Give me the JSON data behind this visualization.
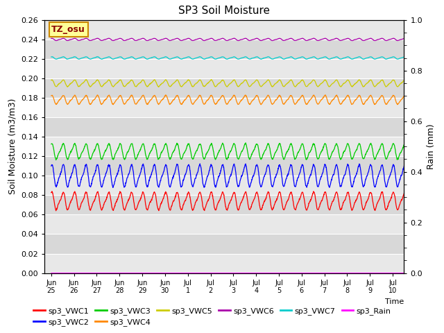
{
  "title": "SP3 Soil Moisture",
  "ylabel_left": "Soil Moisture (m3/m3)",
  "ylabel_right": "Rain (mm)",
  "xlabel": "Time",
  "background_color": "#e0e0e0",
  "ylim_left": [
    0.0,
    0.26
  ],
  "ylim_right": [
    0.0,
    1.0
  ],
  "yticks_left": [
    0.0,
    0.02,
    0.04,
    0.06,
    0.08,
    0.1,
    0.12,
    0.14,
    0.16,
    0.18,
    0.2,
    0.22,
    0.24,
    0.26
  ],
  "yticks_right": [
    0.0,
    0.2,
    0.4,
    0.6,
    0.8,
    1.0
  ],
  "tz_label": "TZ_osu",
  "series": [
    {
      "name": "sp3_VWC1",
      "color": "#ff0000",
      "base": 0.074,
      "amplitude": 0.008,
      "period": 0.5,
      "phase": 0.5
    },
    {
      "name": "sp3_VWC2",
      "color": "#0000ff",
      "base": 0.1,
      "amplitude": 0.01,
      "period": 0.5,
      "phase": 0.5
    },
    {
      "name": "sp3_VWC3",
      "color": "#00cc00",
      "base": 0.125,
      "amplitude": 0.007,
      "period": 0.5,
      "phase": 0.5
    },
    {
      "name": "sp3_VWC4",
      "color": "#ff8800",
      "base": 0.178,
      "amplitude": 0.004,
      "period": 0.5,
      "phase": 0.5
    },
    {
      "name": "sp3_VWC5",
      "color": "#cccc00",
      "base": 0.195,
      "amplitude": 0.003,
      "period": 0.5,
      "phase": 0.5
    },
    {
      "name": "sp3_VWC6",
      "color": "#aa00aa",
      "base": 0.24,
      "amplitude": 0.001,
      "period": 0.5,
      "phase": 0.5
    },
    {
      "name": "sp3_VWC7",
      "color": "#00cccc",
      "base": 0.221,
      "amplitude": 0.001,
      "period": 0.5,
      "phase": 0.5
    },
    {
      "name": "sp3_Rain",
      "color": "#ff00ff",
      "base": 0.0,
      "amplitude": 0.0,
      "period": 1.0,
      "phase": 0.0
    }
  ],
  "tick_positions": [
    0,
    1,
    2,
    3,
    4,
    5,
    6,
    7,
    8,
    9,
    10,
    11,
    12,
    13,
    14,
    15
  ],
  "tick_labels": [
    "Jun 25",
    "Jun 26",
    "Jun 27",
    "Jun 28",
    "Jun 29",
    "Jun 30",
    "Jul 1",
    "Jul 2",
    "Jul 3",
    "Jul 4",
    "Jul 5",
    "Jul 6",
    "Jul 7",
    "Jul 8",
    "Jul 9",
    "Jul 10"
  ],
  "n_points": 1500,
  "duration_days": 15.5,
  "legend_row1": [
    "sp3_VWC1",
    "sp3_VWC2",
    "sp3_VWC3",
    "sp3_VWC4",
    "sp3_VWC5",
    "sp3_VWC6"
  ],
  "legend_row2": [
    "sp3_VWC7",
    "sp3_Rain"
  ]
}
